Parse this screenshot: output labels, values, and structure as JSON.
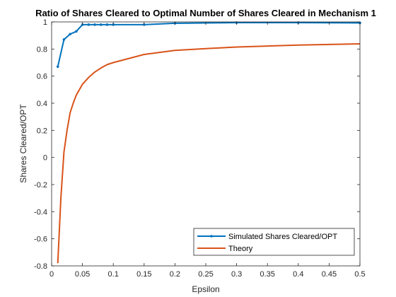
{
  "chart_data": {
    "type": "line",
    "title": "Ratio of Shares Cleared to Optimal Number of Shares Cleared in Mechanism 1",
    "xlabel": "Epsilon",
    "ylabel": "Shares Cleared/OPT",
    "xlim": [
      0,
      0.5
    ],
    "ylim": [
      -0.8,
      1
    ],
    "xticks": [
      0,
      0.05,
      0.1,
      0.15,
      0.2,
      0.25,
      0.3,
      0.35,
      0.4,
      0.45,
      0.5
    ],
    "xtick_labels": [
      "0",
      "0.05",
      "0.1",
      "0.15",
      "0.2",
      "0.25",
      "0.3",
      "0.35",
      "0.4",
      "0.45",
      "0.5"
    ],
    "yticks": [
      -0.8,
      -0.6,
      -0.4,
      -0.2,
      0,
      0.2,
      0.4,
      0.6,
      0.8,
      1
    ],
    "ytick_labels": [
      "-0.8",
      "-0.6",
      "-0.4",
      "-0.2",
      "0",
      "0.2",
      "0.4",
      "0.6",
      "0.8",
      "1"
    ],
    "grid": false,
    "legend_position": "bottom-right",
    "series": [
      {
        "name": "Simulated Shares Cleared/OPT",
        "color": "#0072BD",
        "marker": true,
        "x": [
          0.01,
          0.02,
          0.03,
          0.04,
          0.05,
          0.06,
          0.07,
          0.08,
          0.09,
          0.1,
          0.15,
          0.2,
          0.3,
          0.4,
          0.5
        ],
        "y": [
          0.67,
          0.87,
          0.91,
          0.93,
          0.98,
          0.98,
          0.98,
          0.98,
          0.98,
          0.98,
          0.98,
          0.99,
          0.995,
          0.995,
          0.993
        ]
      },
      {
        "name": "Theory",
        "color": "#D95319",
        "marker": false,
        "x": [
          0.01,
          0.015,
          0.02,
          0.025,
          0.03,
          0.035,
          0.04,
          0.045,
          0.05,
          0.06,
          0.07,
          0.08,
          0.09,
          0.1,
          0.15,
          0.2,
          0.25,
          0.3,
          0.35,
          0.4,
          0.45,
          0.5
        ],
        "y": [
          -0.78,
          -0.3,
          0.04,
          0.2,
          0.33,
          0.4,
          0.46,
          0.5,
          0.54,
          0.59,
          0.63,
          0.66,
          0.685,
          0.7,
          0.76,
          0.79,
          0.803,
          0.815,
          0.822,
          0.829,
          0.834,
          0.838
        ]
      }
    ]
  }
}
